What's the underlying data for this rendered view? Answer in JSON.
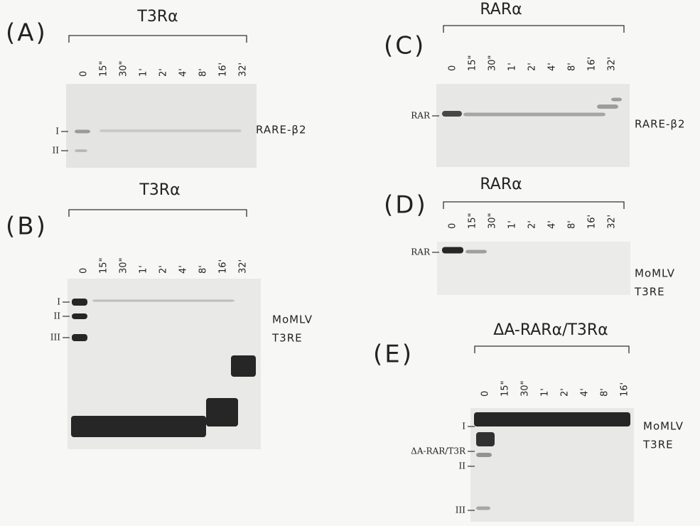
{
  "panels": [
    {
      "label": "(A)",
      "title": "T3Rα",
      "lanes": [
        "0",
        "15\"",
        "30\"",
        "1'",
        "2'",
        "4'",
        "8'",
        "16'",
        "32'"
      ],
      "bands": [
        "I",
        "II"
      ],
      "probe": [
        "RARE-β2"
      ]
    },
    {
      "label": "(B)",
      "title": "T3Rα",
      "lanes": [
        "0",
        "15\"",
        "30\"",
        "1'",
        "2'",
        "4'",
        "8'",
        "16'",
        "32'"
      ],
      "bands": [
        "I",
        "II",
        "III"
      ],
      "probe": [
        "MoMLV",
        "T3RE"
      ]
    },
    {
      "label": "(C)",
      "title": "RARα",
      "lanes": [
        "0",
        "15\"",
        "30\"",
        "1'",
        "2'",
        "4'",
        "8'",
        "16'",
        "32'"
      ],
      "bands": [
        "RAR"
      ],
      "probe": [
        "RARE-β2"
      ]
    },
    {
      "label": "(D)",
      "title": "RARα",
      "lanes": [
        "0",
        "15\"",
        "30\"",
        "1'",
        "2'",
        "4'",
        "8'",
        "16'",
        "32'"
      ],
      "bands": [
        "RAR"
      ],
      "probe": [
        "MoMLV",
        "T3RE"
      ]
    },
    {
      "label": "(E)",
      "title": "ΔA-RARα/T3Rα",
      "lanes": [
        "0",
        "15\"",
        "30\"",
        "1'",
        "2'",
        "4'",
        "8'",
        "16'"
      ],
      "bands": [
        "I",
        "ΔA-RAR/T3R",
        "II",
        "III"
      ],
      "probe": [
        "MoMLV",
        "T3RE"
      ]
    }
  ]
}
